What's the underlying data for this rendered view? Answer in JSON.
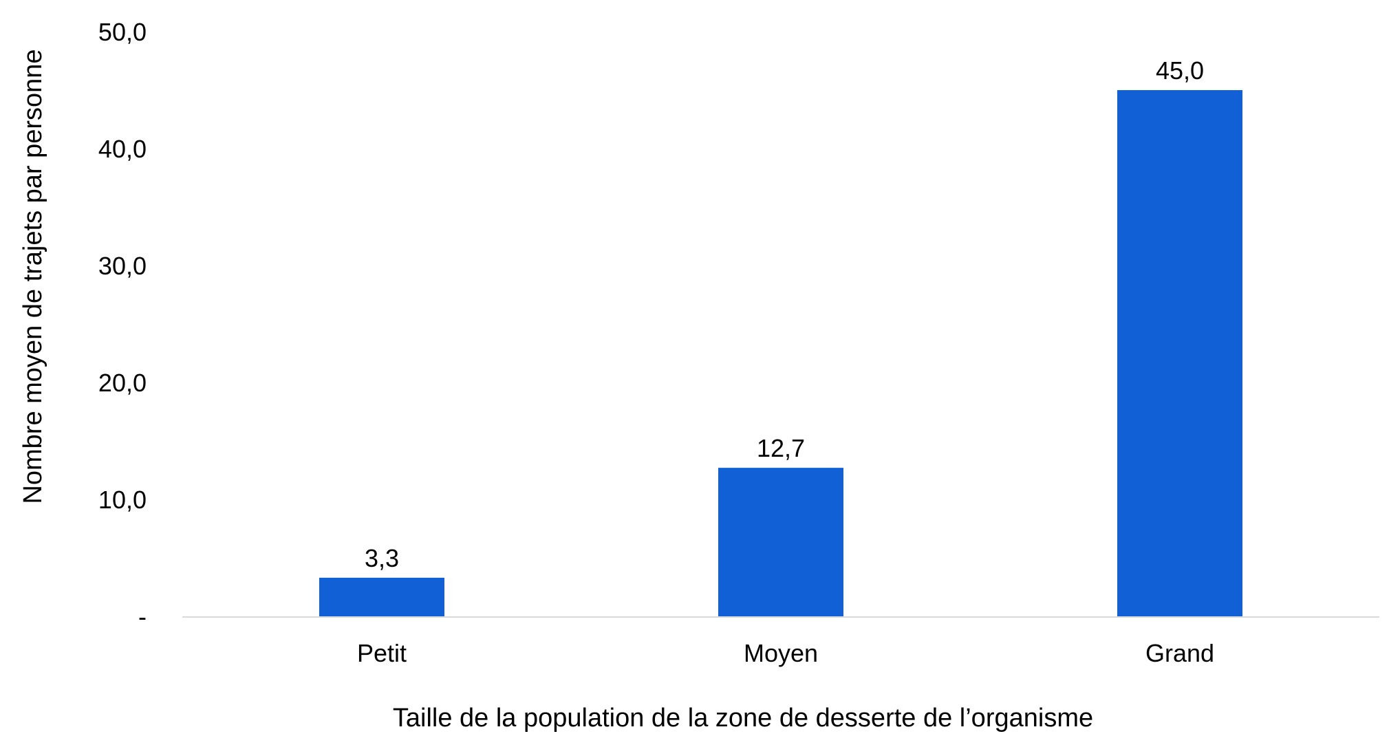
{
  "chart_data": {
    "type": "bar",
    "title": "",
    "xlabel": "Taille de la population de la zone de desserte de l’organisme",
    "ylabel": "Nombre moyen de trajets par personne",
    "categories": [
      "Petit",
      "Moyen",
      "Grand"
    ],
    "values": [
      3.3,
      12.7,
      45.0
    ],
    "value_labels": [
      "3,3",
      "12,7",
      "45,0"
    ],
    "ylim": [
      0,
      50
    ],
    "y_ticks": [
      0,
      10,
      20,
      30,
      40,
      50
    ],
    "y_tick_labels": [
      "-",
      "10,0",
      "20,0",
      "30,0",
      "40,0",
      "50,0"
    ],
    "grid": false,
    "legend": "none",
    "bar_color": "#1160D6",
    "axis_color": "#D9D9D9"
  }
}
